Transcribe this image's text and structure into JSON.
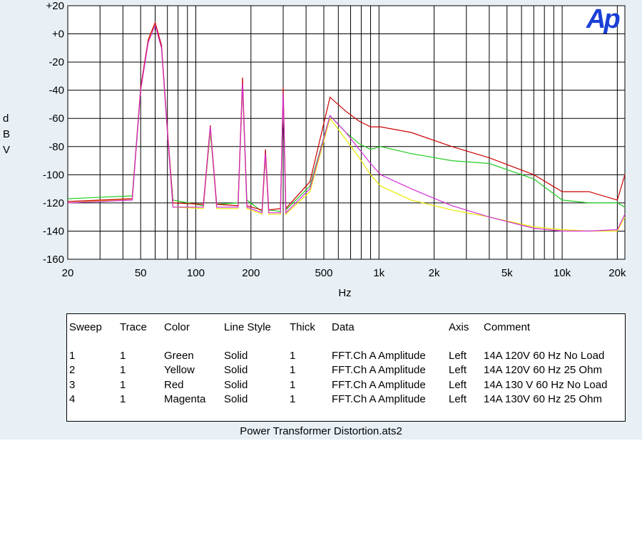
{
  "chart_data": {
    "type": "line",
    "logo_text": "Ap",
    "xlabel": "Hz",
    "ylabel": "d\nB\nV",
    "ylabel_letters": [
      "d",
      "B",
      "V"
    ],
    "x_scale": "log",
    "xlim": [
      20,
      22000
    ],
    "ylim": [
      -160,
      20
    ],
    "grid": true,
    "x_ticks": [
      {
        "value": 20,
        "label": "20"
      },
      {
        "value": 50,
        "label": "50"
      },
      {
        "value": 100,
        "label": "100"
      },
      {
        "value": 200,
        "label": "200"
      },
      {
        "value": 500,
        "label": "500"
      },
      {
        "value": 1000,
        "label": "1k"
      },
      {
        "value": 2000,
        "label": "2k"
      },
      {
        "value": 5000,
        "label": "5k"
      },
      {
        "value": 10000,
        "label": "10k"
      },
      {
        "value": 20000,
        "label": "20k"
      }
    ],
    "y_ticks": [
      {
        "value": 20,
        "label": "+20"
      },
      {
        "value": 0,
        "label": "+0"
      },
      {
        "value": -20,
        "label": "-20"
      },
      {
        "value": -40,
        "label": "-40"
      },
      {
        "value": -60,
        "label": "-60"
      },
      {
        "value": -80,
        "label": "-80"
      },
      {
        "value": -100,
        "label": "-100"
      },
      {
        "value": -120,
        "label": "-120"
      },
      {
        "value": -140,
        "label": "-140"
      },
      {
        "value": -160,
        "label": "-160"
      }
    ],
    "series": [
      {
        "name": "14A 120V 60 Hz No Load",
        "color": "#22cc22",
        "x": [
          20,
          45,
          50,
          55,
          60,
          65,
          70,
          75,
          110,
          120,
          130,
          170,
          180,
          190,
          230,
          240,
          250,
          290,
          300,
          310,
          420,
          540,
          660,
          780,
          900,
          1020,
          1500,
          2500,
          4000,
          7000,
          10000,
          14000,
          20000,
          22000
        ],
        "y": [
          -117,
          -115,
          -40,
          -5,
          6,
          -10,
          -70,
          -118,
          -122,
          -70,
          -121,
          -120,
          -38,
          -118,
          -126,
          -87,
          -125,
          -126,
          -42,
          -125,
          -108,
          -58,
          -70,
          -78,
          -82,
          -80,
          -85,
          -90,
          -92,
          -103,
          -118,
          -120,
          -120,
          -123
        ]
      },
      {
        "name": "14A 120V 60 Hz 25 Ohm",
        "color": "#e8e800",
        "x": [
          20,
          45,
          50,
          55,
          60,
          65,
          70,
          75,
          110,
          120,
          130,
          170,
          180,
          190,
          230,
          240,
          250,
          290,
          300,
          310,
          420,
          540,
          660,
          780,
          900,
          1020,
          1500,
          2500,
          4000,
          7000,
          10000,
          14000,
          20000,
          22000
        ],
        "y": [
          -120,
          -117,
          -40,
          -5,
          7,
          -10,
          -70,
          -123,
          -124,
          -68,
          -124,
          -124,
          -37,
          -124,
          -128,
          -87,
          -128,
          -128,
          -43,
          -128,
          -112,
          -60,
          -75,
          -88,
          -100,
          -108,
          -118,
          -125,
          -130,
          -137,
          -139,
          -140,
          -140,
          -130
        ]
      },
      {
        "name": "14A 130 V 60 Hz No Load",
        "color": "#cc0000",
        "x": [
          20,
          45,
          50,
          55,
          60,
          65,
          70,
          75,
          110,
          120,
          130,
          170,
          180,
          190,
          230,
          240,
          250,
          290,
          300,
          310,
          420,
          540,
          660,
          780,
          900,
          1020,
          1500,
          2500,
          4000,
          7000,
          10000,
          14000,
          20000,
          22000
        ],
        "y": [
          -119,
          -117,
          -38,
          -4,
          8,
          -8,
          -68,
          -120,
          -121,
          -65,
          -121,
          -122,
          -31,
          -122,
          -125,
          -82,
          -125,
          -124,
          -38,
          -124,
          -105,
          -45,
          -55,
          -62,
          -66,
          -66,
          -70,
          -80,
          -88,
          -100,
          -112,
          -112,
          -118,
          -100
        ]
      },
      {
        "name": "14A 130V 60 Hz 25 Ohm",
        "color": "#d42cd4",
        "x": [
          20,
          45,
          50,
          55,
          60,
          65,
          70,
          75,
          110,
          120,
          130,
          170,
          180,
          190,
          230,
          240,
          250,
          290,
          300,
          310,
          420,
          540,
          660,
          780,
          900,
          1020,
          1500,
          2500,
          4000,
          7000,
          10000,
          14000,
          20000,
          22000
        ],
        "y": [
          -120,
          -118,
          -40,
          -6,
          6,
          -10,
          -70,
          -123,
          -123,
          -66,
          -123,
          -123,
          -35,
          -123,
          -127,
          -85,
          -127,
          -127,
          -42,
          -127,
          -110,
          -58,
          -70,
          -82,
          -92,
          -100,
          -110,
          -122,
          -130,
          -138,
          -140,
          -140,
          -139,
          -128
        ]
      }
    ]
  },
  "legend": {
    "headers": {
      "sweep": "Sweep",
      "trace": "Trace",
      "color": "Color",
      "line_style": "Line Style",
      "thick": "Thick",
      "data": "Data",
      "axis": "Axis",
      "comment": "Comment"
    },
    "rows": [
      {
        "sweep": "1",
        "trace": "1",
        "color": "Green",
        "line_style": "Solid",
        "thick": "1",
        "data": "FFT.Ch A Amplitude",
        "axis": "Left",
        "comment": "14A 120V 60 Hz No Load"
      },
      {
        "sweep": "2",
        "trace": "1",
        "color": "Yellow",
        "line_style": "Solid",
        "thick": "1",
        "data": "FFT.Ch A Amplitude",
        "axis": "Left",
        "comment": "14A 120V 60 Hz 25 Ohm"
      },
      {
        "sweep": "3",
        "trace": "1",
        "color": "Red",
        "line_style": "Solid",
        "thick": "1",
        "data": "FFT.Ch A Amplitude",
        "axis": "Left",
        "comment": "14A 130 V 60 Hz No Load"
      },
      {
        "sweep": "4",
        "trace": "1",
        "color": "Magenta",
        "line_style": "Solid",
        "thick": "1",
        "data": "FFT.Ch A Amplitude",
        "axis": "Left",
        "comment": "14A 130V 60 Hz 25 Ohm"
      }
    ]
  },
  "file_name": "Power Transformer Distortion.ats2"
}
